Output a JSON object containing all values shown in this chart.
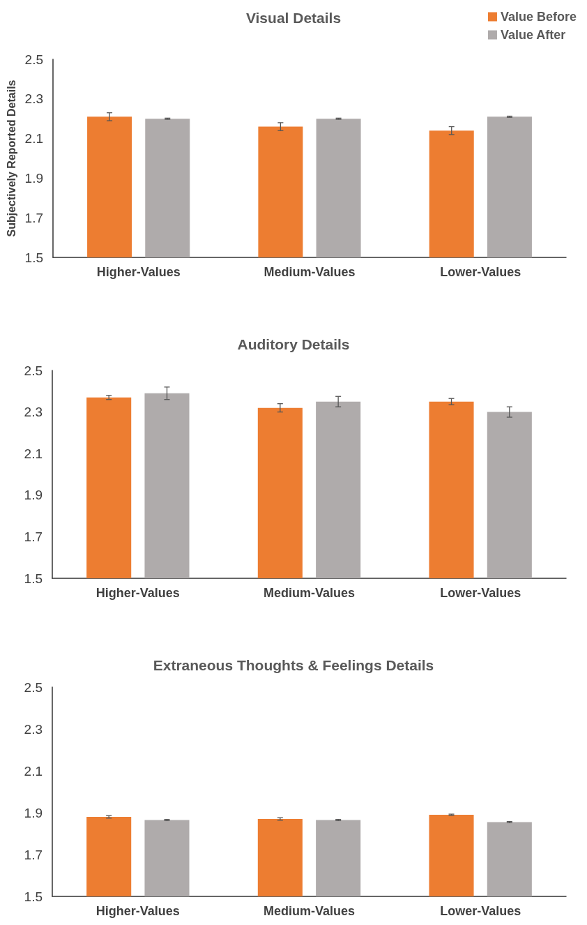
{
  "chart_data": [
    {
      "type": "bar",
      "title": "Visual Details",
      "ylabel": "Subjectively Reported Details",
      "categories": [
        "Higher-Values",
        "Medium-Values",
        "Lower-Values"
      ],
      "ylim": [
        1.5,
        2.5
      ],
      "yticks": [
        1.5,
        1.7,
        1.9,
        2.1,
        2.3,
        2.5
      ],
      "grid": false,
      "legend": "top right",
      "series": [
        {
          "name": "Value Before",
          "color": "#ed7d31",
          "values": [
            2.21,
            2.16,
            2.14
          ],
          "errors": [
            0.02,
            0.02,
            0.02
          ]
        },
        {
          "name": "Value After",
          "color": "#afabab",
          "values": [
            2.2,
            2.2,
            2.21
          ],
          "errors": [
            0.003,
            0.003,
            0.003
          ]
        }
      ]
    },
    {
      "type": "bar",
      "title": "Auditory Details",
      "categories": [
        "Higher-Values",
        "Medium-Values",
        "Lower-Values"
      ],
      "ylim": [
        1.5,
        2.5
      ],
      "yticks": [
        1.5,
        1.7,
        1.9,
        2.1,
        2.3,
        2.5
      ],
      "grid": false,
      "series": [
        {
          "color": "#ed7d31",
          "values": [
            2.37,
            2.32,
            2.35
          ],
          "errors": [
            0.01,
            0.02,
            0.015
          ]
        },
        {
          "color": "#afabab",
          "values": [
            2.39,
            2.35,
            2.3
          ],
          "errors": [
            0.03,
            0.025,
            0.025
          ]
        }
      ]
    },
    {
      "type": "bar",
      "title": "Extraneous Thoughts & Feelings Details",
      "categories": [
        "Higher-Values",
        "Medium-Values",
        "Lower-Values"
      ],
      "ylim": [
        1.5,
        2.5
      ],
      "yticks": [
        1.5,
        1.7,
        1.9,
        2.1,
        2.3,
        2.5
      ],
      "grid": false,
      "series": [
        {
          "color": "#ed7d31",
          "values": [
            1.88,
            1.87,
            1.89
          ],
          "errors": [
            0.006,
            0.006,
            0.003
          ]
        },
        {
          "color": "#afabab",
          "values": [
            1.865,
            1.865,
            1.855
          ],
          "errors": [
            0.003,
            0.003,
            0.003
          ]
        }
      ]
    }
  ]
}
